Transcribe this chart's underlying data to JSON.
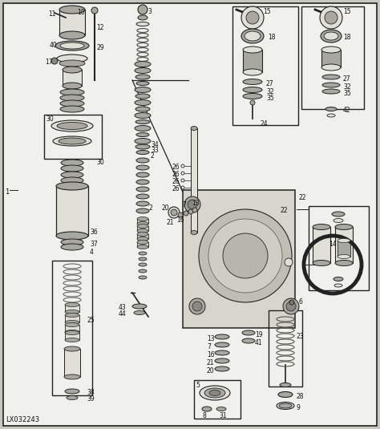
{
  "figsize": [
    4.74,
    5.35
  ],
  "dpi": 100,
  "diagram_label": "LX032243",
  "image_bg": "#f0f0ec",
  "outer_bg": "#c8c8c0",
  "border_color": "#222222"
}
